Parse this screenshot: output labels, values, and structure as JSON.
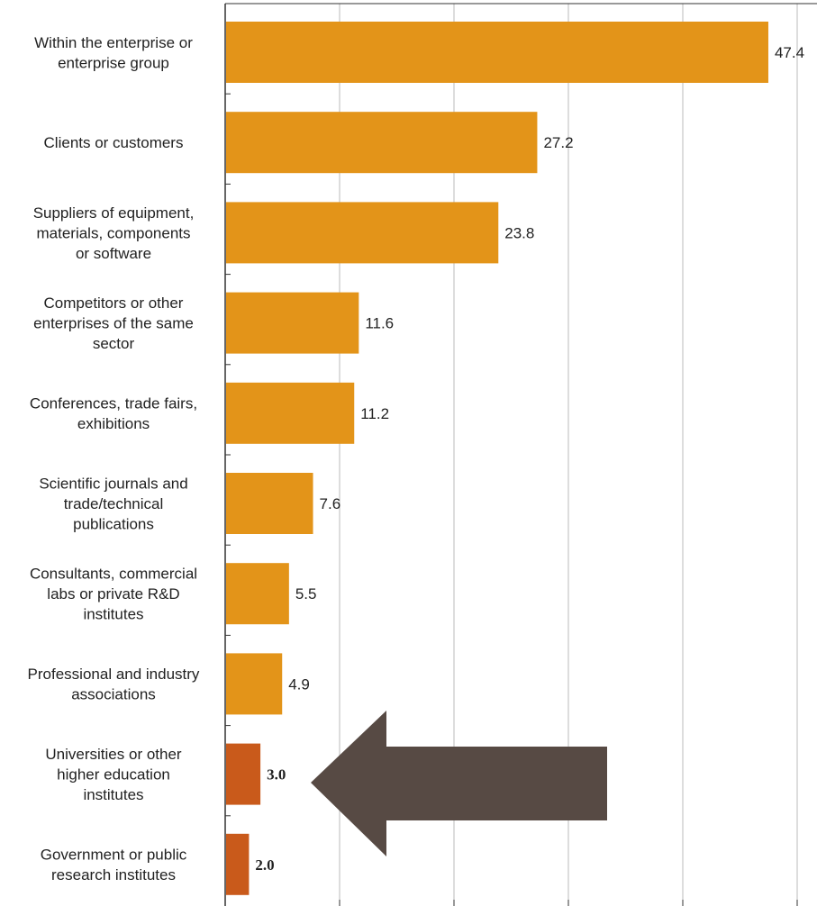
{
  "chart_data": {
    "type": "bar",
    "orientation": "horizontal",
    "categories": [
      [
        "Within the enterprise or",
        "enterprise group"
      ],
      [
        "Clients or customers"
      ],
      [
        "Suppliers of equipment,",
        "materials, components",
        "or software"
      ],
      [
        "Competitors or other",
        "enterprises of the same",
        "sector"
      ],
      [
        "Conferences, trade fairs,",
        "exhibitions"
      ],
      [
        "Scientific journals and",
        "trade/technical",
        "publications"
      ],
      [
        "Consultants, commercial",
        "labs or private R&D",
        "institutes"
      ],
      [
        "Professional and industry",
        "associations"
      ],
      [
        "Universities or other",
        "higher education",
        "institutes"
      ],
      [
        "Government or public",
        "research institutes"
      ]
    ],
    "values": [
      47.4,
      27.2,
      23.8,
      11.6,
      11.2,
      7.6,
      5.5,
      4.9,
      3.0,
      2.0
    ],
    "value_labels": [
      "47.4",
      "27.2",
      "23.8",
      "11.6",
      "11.2",
      "7.6",
      "5.5",
      "4.9",
      "3.0",
      "2.0"
    ],
    "highlighted": [
      false,
      false,
      false,
      false,
      false,
      false,
      false,
      false,
      true,
      true
    ],
    "xlim": [
      0,
      50
    ],
    "grid": true,
    "title": "",
    "xlabel": "",
    "ylabel": "",
    "colors": {
      "bar": "#E39419",
      "highlight_bar": "#C95A1B",
      "arrow": "#574A44",
      "grid": "#BBBBBB",
      "axis": "#333333",
      "text": "#222222"
    },
    "annotation": "arrow pointing left at the highlighted bars"
  }
}
